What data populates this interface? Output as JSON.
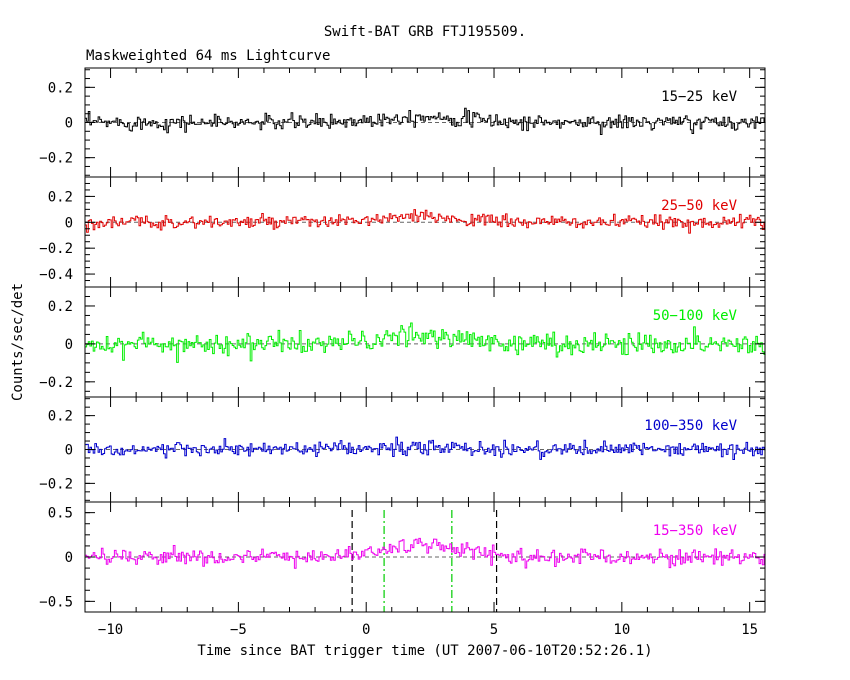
{
  "chart_data": {
    "type": "line",
    "title": "Swift-BAT GRB FTJ195509.",
    "subtitle": "Maskweighted 64 ms Lightcurve",
    "xlabel": "Time since BAT trigger time (UT 2007-06-10T20:52:26.1)",
    "ylabel": "Counts/sec/det",
    "xlim": [
      -11,
      15.6
    ],
    "x_ticks": [
      -10,
      -5,
      0,
      5,
      10,
      15
    ],
    "x_tick_labels": [
      "−10",
      "−5",
      "0",
      "5",
      "10",
      "15"
    ],
    "x_start": -11,
    "x_end": 15.6,
    "bin_width": 0.064,
    "grid": false,
    "vertical_markers": [
      {
        "x": -0.55,
        "style": "dashed",
        "color": "#000000"
      },
      {
        "x": 0.7,
        "style": "dashdot",
        "color": "#00cc00"
      },
      {
        "x": 3.35,
        "style": "dashdot",
        "color": "#00cc00"
      },
      {
        "x": 5.1,
        "style": "dashed",
        "color": "#000000"
      }
    ],
    "panels": [
      {
        "name": "15−25 keV",
        "color": "#000000",
        "ylim": [
          -0.31,
          0.31
        ],
        "y_ticks": [
          -0.2,
          0,
          0.2
        ],
        "y_tick_labels": [
          "−0.2",
          "0",
          "0.2"
        ],
        "noise_level": 0.022,
        "pulse_amplitude": 0.035
      },
      {
        "name": "25−50 keV",
        "color": "#e00000",
        "ylim": [
          -0.5,
          0.35
        ],
        "y_ticks": [
          -0.4,
          -0.2,
          0,
          0.2
        ],
        "y_tick_labels": [
          "−0.4",
          "−0.2",
          "0",
          "0.2"
        ],
        "noise_level": 0.025,
        "pulse_amplitude": 0.04
      },
      {
        "name": "50−100 keV",
        "color": "#00ee00",
        "ylim": [
          -0.28,
          0.3
        ],
        "y_ticks": [
          -0.2,
          0,
          0.2
        ],
        "y_tick_labels": [
          "−0.2",
          "0",
          "0.2"
        ],
        "noise_level": 0.028,
        "pulse_amplitude": 0.04
      },
      {
        "name": "100−350 keV",
        "color": "#0000cc",
        "ylim": [
          -0.31,
          0.31
        ],
        "y_ticks": [
          -0.2,
          0,
          0.2
        ],
        "y_tick_labels": [
          "−0.2",
          "0",
          "0.2"
        ],
        "noise_level": 0.022,
        "pulse_amplitude": 0.01
      },
      {
        "name": "15−350 keV",
        "color": "#ee00ee",
        "ylim": [
          -0.62,
          0.62
        ],
        "y_ticks": [
          -0.5,
          0,
          0.5
        ],
        "y_tick_labels": [
          "−0.5",
          "0",
          "0.5"
        ],
        "noise_level": 0.045,
        "pulse_amplitude": 0.13
      }
    ]
  }
}
